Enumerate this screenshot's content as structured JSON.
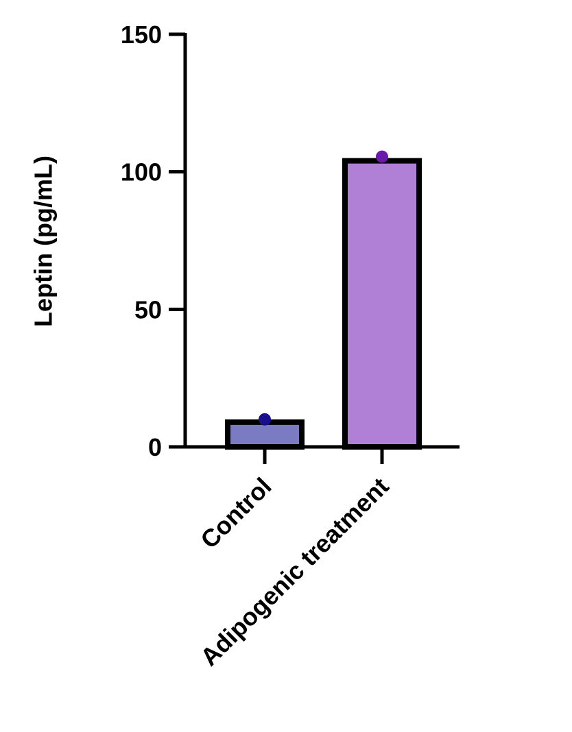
{
  "chart_data": {
    "type": "bar",
    "ylabel": "Leptin (pg/mL)",
    "categories": [
      "Control",
      "Adipogenic treatment"
    ],
    "values": [
      9,
      104
    ],
    "colors": [
      "#7b7bc4",
      "#b07fd6"
    ],
    "points": [
      10,
      105.5
    ],
    "point_colors": [
      "#1a0f8a",
      "#6a1aa8"
    ],
    "ylim": [
      0,
      150
    ],
    "yticks": [
      0,
      50,
      100,
      150
    ]
  }
}
